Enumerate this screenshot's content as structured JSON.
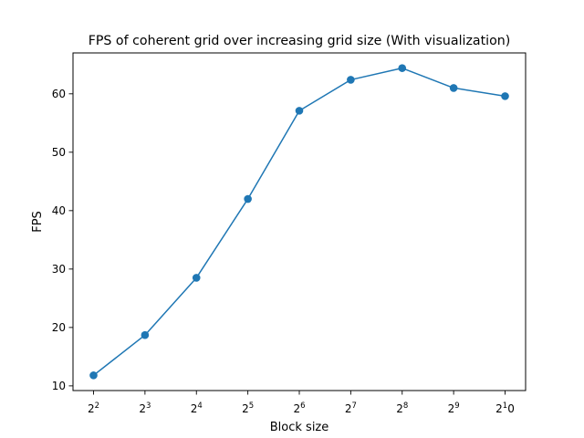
{
  "chart_data": {
    "type": "line",
    "title": "FPS of coherent grid over increasing grid size (With visualization)",
    "xlabel": "Block size",
    "ylabel": "FPS",
    "categories": [
      {
        "base": "2",
        "exp": "2"
      },
      {
        "base": "2",
        "exp": "3"
      },
      {
        "base": "2",
        "exp": "4"
      },
      {
        "base": "2",
        "exp": "5"
      },
      {
        "base": "2",
        "exp": "6"
      },
      {
        "base": "2",
        "exp": "7"
      },
      {
        "base": "2",
        "exp": "8"
      },
      {
        "base": "2",
        "exp": "9"
      },
      {
        "base": "2",
        "exp": "1",
        "suffix": "0"
      }
    ],
    "values": [
      11.8,
      18.7,
      28.5,
      42.0,
      57.1,
      62.4,
      64.4,
      61.0,
      59.6
    ],
    "ylim": [
      9.2,
      67.0
    ],
    "yticks": [
      10,
      20,
      30,
      40,
      50,
      60
    ],
    "grid": false,
    "color": "#1f77b4"
  }
}
